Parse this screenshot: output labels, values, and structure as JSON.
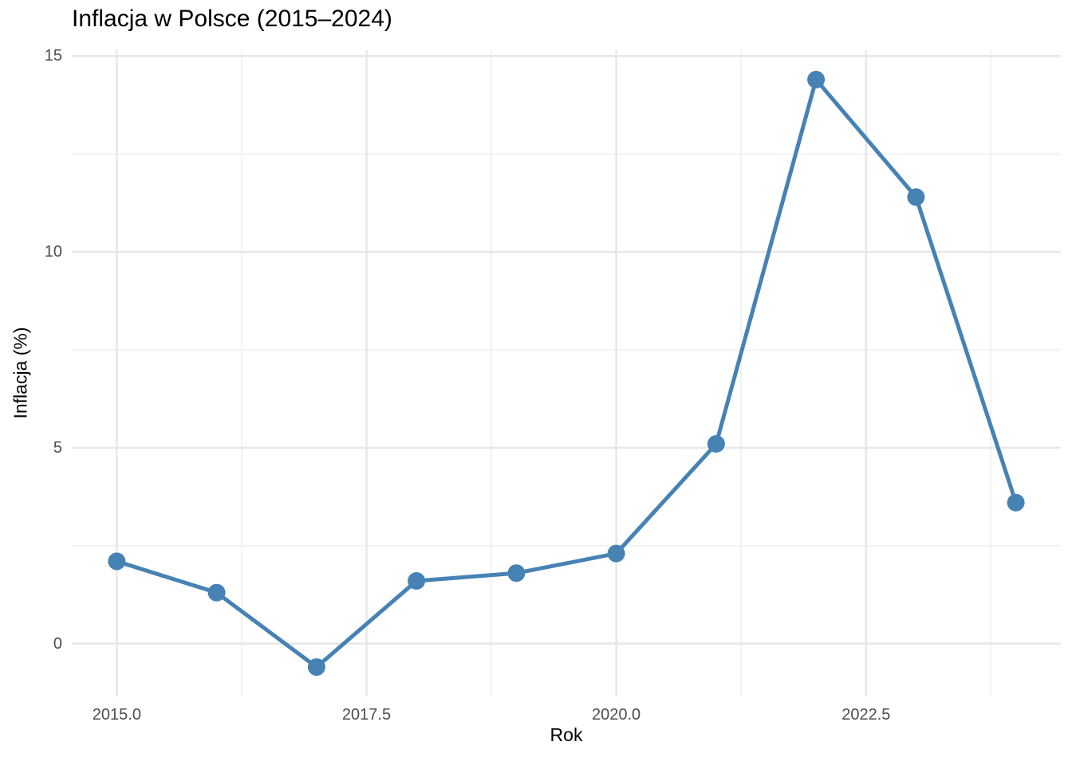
{
  "chart_data": {
    "type": "line",
    "title": "Inflacja w Polsce (2015–2024)",
    "xlabel": "Rok",
    "ylabel": "Inflacja (%)",
    "series": [
      {
        "name": "Inflacja (%)",
        "x": [
          2015,
          2016,
          2017,
          2018,
          2019,
          2020,
          2021,
          2022,
          2023,
          2024
        ],
        "values": [
          2.1,
          1.3,
          -0.6,
          1.6,
          1.8,
          2.3,
          5.1,
          14.4,
          11.4,
          3.6
        ]
      }
    ],
    "xlim": [
      2014.55,
      2024.45
    ],
    "ylim": [
      -1.35,
      15.15
    ],
    "x_ticks": {
      "values": [
        2015.0,
        2017.5,
        2020.0,
        2022.5
      ],
      "labels": [
        "2015.0",
        "2017.5",
        "2020.0",
        "2022.5"
      ]
    },
    "y_ticks": {
      "values": [
        0,
        5,
        10,
        15
      ],
      "labels": [
        "0",
        "5",
        "10",
        "15"
      ]
    },
    "x_minor_ticks": [
      2016.25,
      2018.75,
      2021.25,
      2023.75
    ],
    "y_minor_ticks": [
      2.5,
      7.5,
      12.5
    ],
    "grid": "on",
    "legend": "none",
    "colors": {
      "line": "#4682B4",
      "point": "#4682B4",
      "grid_major": "#E7E7E7",
      "grid_minor": "#F0F0F0",
      "tick_text": "#4D4D4D",
      "title_text": "#000000",
      "background": "#FFFFFF"
    }
  }
}
